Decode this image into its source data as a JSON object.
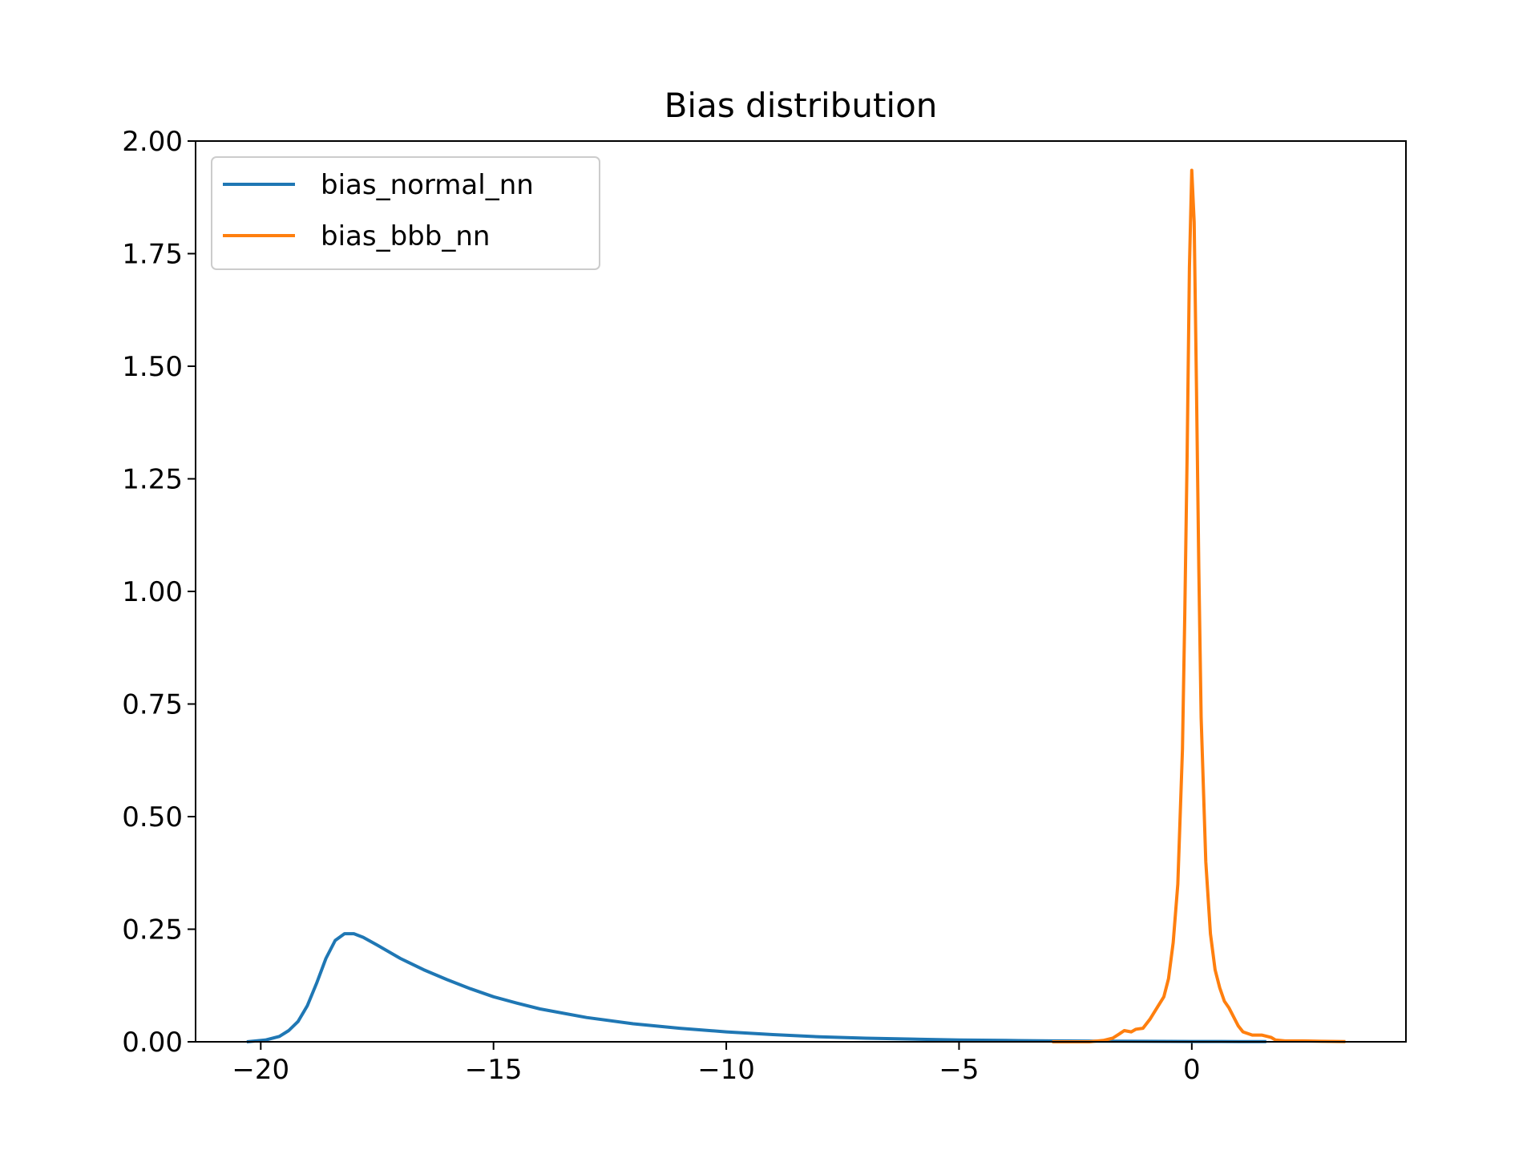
{
  "chart_data": {
    "type": "line",
    "title": "Bias distribution",
    "xlabel": "",
    "ylabel": "",
    "xlim": [
      -21.4,
      4.6
    ],
    "ylim": [
      0,
      2.0
    ],
    "x_ticks": [
      -20,
      -15,
      -10,
      -5,
      0
    ],
    "x_tick_labels": [
      "−20",
      "−15",
      "−10",
      "−5",
      "0"
    ],
    "y_ticks": [
      0,
      0.25,
      0.5,
      0.75,
      1.0,
      1.25,
      1.5,
      1.75,
      2.0
    ],
    "y_tick_labels": [
      "0.00",
      "0.25",
      "0.50",
      "0.75",
      "1.00",
      "1.25",
      "1.50",
      "1.75",
      "2.00"
    ],
    "grid": false,
    "legend": "upper-left",
    "series": [
      {
        "name": "bias_normal_nn",
        "color": "#1f77b4",
        "points": [
          [
            -20.3,
            0.0
          ],
          [
            -19.9,
            0.004
          ],
          [
            -19.6,
            0.012
          ],
          [
            -19.4,
            0.025
          ],
          [
            -19.2,
            0.045
          ],
          [
            -19.0,
            0.08
          ],
          [
            -18.8,
            0.13
          ],
          [
            -18.6,
            0.185
          ],
          [
            -18.4,
            0.225
          ],
          [
            -18.2,
            0.24
          ],
          [
            -18.0,
            0.24
          ],
          [
            -17.8,
            0.232
          ],
          [
            -17.5,
            0.215
          ],
          [
            -17.0,
            0.185
          ],
          [
            -16.5,
            0.16
          ],
          [
            -16.0,
            0.138
          ],
          [
            -15.5,
            0.118
          ],
          [
            -15.0,
            0.1
          ],
          [
            -14.5,
            0.086
          ],
          [
            -14.0,
            0.073
          ],
          [
            -13.0,
            0.054
          ],
          [
            -12.0,
            0.04
          ],
          [
            -11.0,
            0.03
          ],
          [
            -10.0,
            0.022
          ],
          [
            -9.0,
            0.016
          ],
          [
            -8.0,
            0.011
          ],
          [
            -7.0,
            0.008
          ],
          [
            -6.0,
            0.006
          ],
          [
            -5.0,
            0.004
          ],
          [
            -4.0,
            0.003
          ],
          [
            -3.0,
            0.002
          ],
          [
            -2.0,
            0.0015
          ],
          [
            -1.0,
            0.001
          ],
          [
            0.0,
            0.0008
          ],
          [
            1.0,
            0.0005
          ],
          [
            1.6,
            0.0003
          ]
        ]
      },
      {
        "name": "bias_bbb_nn",
        "color": "#ff7f0e",
        "points": [
          [
            -3.0,
            0.0
          ],
          [
            -2.2,
            0.0
          ],
          [
            -1.9,
            0.003
          ],
          [
            -1.7,
            0.008
          ],
          [
            -1.55,
            0.018
          ],
          [
            -1.45,
            0.025
          ],
          [
            -1.3,
            0.022
          ],
          [
            -1.2,
            0.028
          ],
          [
            -1.05,
            0.03
          ],
          [
            -0.9,
            0.05
          ],
          [
            -0.75,
            0.075
          ],
          [
            -0.6,
            0.1
          ],
          [
            -0.5,
            0.14
          ],
          [
            -0.4,
            0.22
          ],
          [
            -0.3,
            0.35
          ],
          [
            -0.2,
            0.65
          ],
          [
            -0.15,
            0.95
          ],
          [
            -0.1,
            1.3
          ],
          [
            -0.05,
            1.72
          ],
          [
            0.0,
            1.935
          ],
          [
            0.05,
            1.82
          ],
          [
            0.1,
            1.45
          ],
          [
            0.15,
            1.05
          ],
          [
            0.2,
            0.72
          ],
          [
            0.3,
            0.4
          ],
          [
            0.4,
            0.24
          ],
          [
            0.5,
            0.16
          ],
          [
            0.6,
            0.12
          ],
          [
            0.7,
            0.09
          ],
          [
            0.8,
            0.075
          ],
          [
            0.9,
            0.055
          ],
          [
            1.0,
            0.035
          ],
          [
            1.1,
            0.022
          ],
          [
            1.3,
            0.015
          ],
          [
            1.5,
            0.015
          ],
          [
            1.7,
            0.01
          ],
          [
            1.8,
            0.004
          ],
          [
            2.0,
            0.002
          ],
          [
            2.4,
            0.002
          ],
          [
            2.8,
            0.001
          ],
          [
            3.3,
            0.0005
          ]
        ]
      }
    ]
  }
}
